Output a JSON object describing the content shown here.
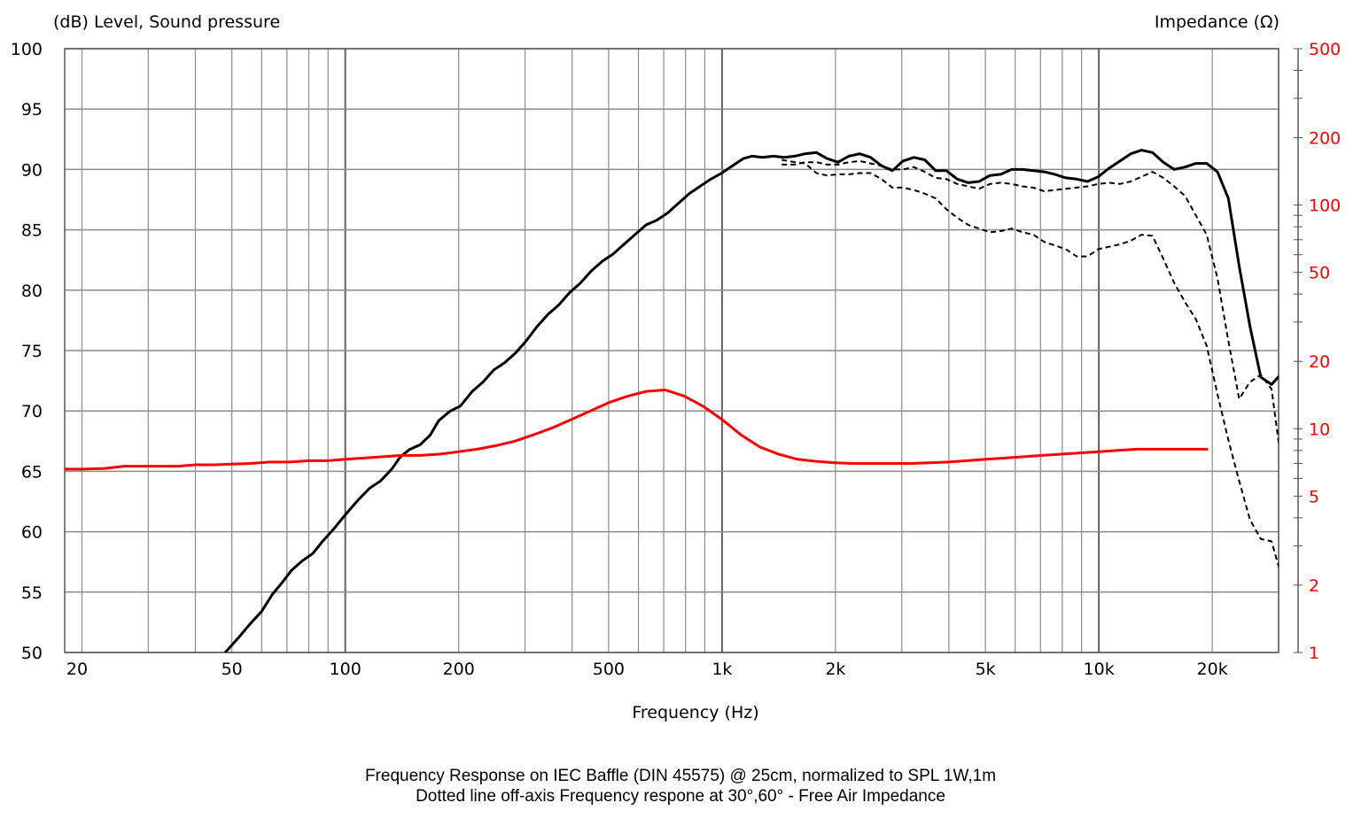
{
  "chart_data": {
    "type": "line",
    "left_axis_label": "(dB)  Level, Sound pressure",
    "right_axis_label": "Impedance  (Ω)",
    "xlabel": "Frequency  (Hz)",
    "x_scale": "log",
    "xlim": [
      18,
      30000
    ],
    "x_ticks": [
      {
        "value": 20,
        "label": "20"
      },
      {
        "value": 50,
        "label": "50"
      },
      {
        "value": 100,
        "label": "100"
      },
      {
        "value": 200,
        "label": "200"
      },
      {
        "value": 500,
        "label": "500"
      },
      {
        "value": 1000,
        "label": "1k"
      },
      {
        "value": 2000,
        "label": "2k"
      },
      {
        "value": 5000,
        "label": "5k"
      },
      {
        "value": 10000,
        "label": "10k"
      },
      {
        "value": 20000,
        "label": "20k"
      }
    ],
    "ylim_left": [
      50,
      100
    ],
    "y_ticks_left": [
      "50",
      "55",
      "60",
      "65",
      "70",
      "75",
      "80",
      "85",
      "90",
      "95",
      "100"
    ],
    "y_scale_right": "log",
    "ylim_right": [
      1,
      500
    ],
    "y_ticks_right": [
      {
        "value": 1,
        "label": "1"
      },
      {
        "value": 2,
        "label": "2"
      },
      {
        "value": 5,
        "label": "5"
      },
      {
        "value": 10,
        "label": "10"
      },
      {
        "value": 20,
        "label": "20"
      },
      {
        "value": 50,
        "label": "50"
      },
      {
        "value": 100,
        "label": "100"
      },
      {
        "value": 200,
        "label": "200"
      },
      {
        "value": 500,
        "label": "500"
      }
    ],
    "grid": true,
    "colors": {
      "spl": "#000000",
      "impedance": "#ff0000",
      "grid": "#8c8c8c",
      "right_axis": "#ff0000"
    },
    "series": [
      {
        "axis": "left",
        "style": "solid",
        "color": "#000000",
        "points": [
          [
            48,
            50
          ],
          [
            52,
            51.2
          ],
          [
            56,
            52.4
          ],
          [
            60,
            53.4
          ],
          [
            64,
            54.8
          ],
          [
            68,
            55.8
          ],
          [
            72,
            56.8
          ],
          [
            77,
            57.6
          ],
          [
            82,
            58.2
          ],
          [
            87,
            59.2
          ],
          [
            93,
            60.2
          ],
          [
            100,
            61.4
          ],
          [
            108,
            62.6
          ],
          [
            116,
            63.6
          ],
          [
            124,
            64.2
          ],
          [
            133,
            65.2
          ],
          [
            140,
            66.2
          ],
          [
            148,
            66.8
          ],
          [
            158,
            67.2
          ],
          [
            168,
            68
          ],
          [
            177,
            69.2
          ],
          [
            190,
            70
          ],
          [
            202,
            70.4
          ],
          [
            217,
            71.6
          ],
          [
            232,
            72.4
          ],
          [
            248,
            73.4
          ],
          [
            265,
            74
          ],
          [
            283,
            74.8
          ],
          [
            302,
            75.8
          ],
          [
            323,
            77
          ],
          [
            345,
            78
          ],
          [
            369,
            78.8
          ],
          [
            394,
            79.8
          ],
          [
            421,
            80.6
          ],
          [
            450,
            81.6
          ],
          [
            481,
            82.4
          ],
          [
            514,
            83
          ],
          [
            549,
            83.8
          ],
          [
            587,
            84.6
          ],
          [
            628,
            85.4
          ],
          [
            671,
            85.8
          ],
          [
            717,
            86.4
          ],
          [
            766,
            87.2
          ],
          [
            818,
            88
          ],
          [
            874,
            88.6
          ],
          [
            934,
            89.2
          ],
          [
            998,
            89.7
          ],
          [
            1066,
            90.3
          ],
          [
            1139,
            90.9
          ],
          [
            1200,
            91.1
          ],
          [
            1280,
            91
          ],
          [
            1370,
            91.1
          ],
          [
            1460,
            91
          ],
          [
            1560,
            91.1
          ],
          [
            1660,
            91.3
          ],
          [
            1780,
            91.4
          ],
          [
            1900,
            90.9
          ],
          [
            2030,
            90.6
          ],
          [
            2170,
            91.1
          ],
          [
            2320,
            91.3
          ],
          [
            2480,
            91
          ],
          [
            2650,
            90.3
          ],
          [
            2830,
            89.9
          ],
          [
            3020,
            90.7
          ],
          [
            3230,
            91
          ],
          [
            3450,
            90.8
          ],
          [
            3690,
            89.9
          ],
          [
            3940,
            89.9
          ],
          [
            4210,
            89.2
          ],
          [
            4500,
            88.9
          ],
          [
            4810,
            89
          ],
          [
            5140,
            89.5
          ],
          [
            5490,
            89.6
          ],
          [
            5870,
            90
          ],
          [
            6270,
            90
          ],
          [
            6700,
            89.9
          ],
          [
            7160,
            89.8
          ],
          [
            7650,
            89.6
          ],
          [
            8170,
            89.3
          ],
          [
            8730,
            89.2
          ],
          [
            9330,
            89
          ],
          [
            9970,
            89.4
          ],
          [
            10650,
            90.1
          ],
          [
            11380,
            90.7
          ],
          [
            12160,
            91.3
          ],
          [
            12990,
            91.6
          ],
          [
            13880,
            91.4
          ],
          [
            14830,
            90.6
          ],
          [
            15850,
            90
          ],
          [
            16940,
            90.2
          ],
          [
            18090,
            90.5
          ],
          [
            19330,
            90.5
          ],
          [
            20650,
            89.8
          ],
          [
            22070,
            87.6
          ],
          [
            23580,
            82
          ],
          [
            25190,
            77
          ],
          [
            26910,
            72.8
          ],
          [
            28750,
            72.2
          ],
          [
            30720,
            73.2
          ]
        ]
      },
      {
        "axis": "left",
        "style": "dashed",
        "color": "#000000",
        "points": [
          [
            1440,
            90.4
          ],
          [
            1560,
            90.4
          ],
          [
            1660,
            90.6
          ],
          [
            1780,
            90.6
          ],
          [
            1900,
            90.4
          ],
          [
            2030,
            90.4
          ],
          [
            2170,
            90.6
          ],
          [
            2320,
            90.7
          ],
          [
            2480,
            90.5
          ],
          [
            2650,
            90.3
          ],
          [
            2830,
            90
          ],
          [
            3020,
            90
          ],
          [
            3230,
            90.2
          ],
          [
            3450,
            89.8
          ],
          [
            3690,
            89.3
          ],
          [
            3940,
            89.2
          ],
          [
            4210,
            88.8
          ],
          [
            4500,
            88.6
          ],
          [
            4810,
            88.4
          ],
          [
            5140,
            88.8
          ],
          [
            5490,
            88.9
          ],
          [
            5870,
            88.8
          ],
          [
            6270,
            88.6
          ],
          [
            6700,
            88.5
          ],
          [
            7160,
            88.2
          ],
          [
            7650,
            88.3
          ],
          [
            8170,
            88.4
          ],
          [
            8730,
            88.5
          ],
          [
            9330,
            88.6
          ],
          [
            9970,
            88.8
          ],
          [
            10650,
            88.9
          ],
          [
            11380,
            88.8
          ],
          [
            12160,
            89
          ],
          [
            12990,
            89.4
          ],
          [
            13880,
            89.8
          ],
          [
            14830,
            89.3
          ],
          [
            15850,
            88.6
          ],
          [
            16940,
            87.8
          ],
          [
            18090,
            86.2
          ],
          [
            19330,
            84.6
          ],
          [
            20650,
            81
          ],
          [
            22070,
            75.8
          ],
          [
            23580,
            71
          ],
          [
            25190,
            72.4
          ],
          [
            26910,
            73
          ],
          [
            28750,
            71.8
          ],
          [
            30720,
            65
          ]
        ]
      },
      {
        "axis": "left",
        "style": "dashed",
        "color": "#000000",
        "points": [
          [
            1440,
            90.8
          ],
          [
            1560,
            90.6
          ],
          [
            1660,
            90.5
          ],
          [
            1780,
            89.7
          ],
          [
            1900,
            89.5
          ],
          [
            2030,
            89.6
          ],
          [
            2170,
            89.6
          ],
          [
            2320,
            89.7
          ],
          [
            2480,
            89.7
          ],
          [
            2650,
            89.2
          ],
          [
            2830,
            88.5
          ],
          [
            3020,
            88.5
          ],
          [
            3230,
            88.3
          ],
          [
            3450,
            88
          ],
          [
            3690,
            87.6
          ],
          [
            3940,
            86.7
          ],
          [
            4210,
            86
          ],
          [
            4500,
            85.4
          ],
          [
            4810,
            85.1
          ],
          [
            5140,
            84.8
          ],
          [
            5490,
            84.9
          ],
          [
            5870,
            85.1
          ],
          [
            6270,
            84.8
          ],
          [
            6700,
            84.6
          ],
          [
            7160,
            84
          ],
          [
            7650,
            83.7
          ],
          [
            8170,
            83.4
          ],
          [
            8730,
            82.8
          ],
          [
            9330,
            82.8
          ],
          [
            9970,
            83.4
          ],
          [
            10650,
            83.6
          ],
          [
            11380,
            83.8
          ],
          [
            12160,
            84.1
          ],
          [
            12990,
            84.6
          ],
          [
            13880,
            84.5
          ],
          [
            14830,
            82.6
          ],
          [
            15850,
            80.6
          ],
          [
            16940,
            79
          ],
          [
            18090,
            77.6
          ],
          [
            19330,
            75.4
          ],
          [
            20650,
            71.4
          ],
          [
            22070,
            67.6
          ],
          [
            23580,
            64.2
          ],
          [
            25190,
            61
          ],
          [
            26910,
            59.4
          ],
          [
            28750,
            59.2
          ],
          [
            30720,
            56
          ]
        ]
      },
      {
        "axis": "right",
        "style": "solid",
        "color": "#ff0000",
        "points": [
          [
            18,
            6.6
          ],
          [
            20,
            6.6
          ],
          [
            23,
            6.65
          ],
          [
            26,
            6.8
          ],
          [
            30,
            6.8
          ],
          [
            36,
            6.8
          ],
          [
            40,
            6.9
          ],
          [
            45,
            6.9
          ],
          [
            50,
            6.95
          ],
          [
            56,
            7
          ],
          [
            63,
            7.1
          ],
          [
            71,
            7.1
          ],
          [
            80,
            7.2
          ],
          [
            90,
            7.2
          ],
          [
            100,
            7.3
          ],
          [
            112,
            7.4
          ],
          [
            126,
            7.5
          ],
          [
            141,
            7.6
          ],
          [
            158,
            7.6
          ],
          [
            178,
            7.7
          ],
          [
            200,
            7.9
          ],
          [
            224,
            8.1
          ],
          [
            251,
            8.4
          ],
          [
            282,
            8.8
          ],
          [
            316,
            9.4
          ],
          [
            355,
            10.1
          ],
          [
            398,
            11
          ],
          [
            447,
            12
          ],
          [
            501,
            13.1
          ],
          [
            562,
            14
          ],
          [
            631,
            14.7
          ],
          [
            708,
            14.9
          ],
          [
            794,
            14
          ],
          [
            891,
            12.6
          ],
          [
            1000,
            11
          ],
          [
            1122,
            9.4
          ],
          [
            1259,
            8.3
          ],
          [
            1413,
            7.7
          ],
          [
            1585,
            7.3
          ],
          [
            1778,
            7.15
          ],
          [
            1995,
            7.05
          ],
          [
            2239,
            7
          ],
          [
            2512,
            7
          ],
          [
            2818,
            7
          ],
          [
            3162,
            7
          ],
          [
            3548,
            7.05
          ],
          [
            3981,
            7.1
          ],
          [
            4467,
            7.2
          ],
          [
            5012,
            7.3
          ],
          [
            5623,
            7.4
          ],
          [
            6310,
            7.5
          ],
          [
            7079,
            7.6
          ],
          [
            7943,
            7.7
          ],
          [
            8913,
            7.8
          ],
          [
            10000,
            7.9
          ],
          [
            11220,
            8
          ],
          [
            12589,
            8.1
          ],
          [
            14125,
            8.1
          ],
          [
            15849,
            8.1
          ],
          [
            17783,
            8.1
          ],
          [
            19500,
            8.1
          ]
        ]
      }
    ]
  },
  "caption": {
    "line1": "Frequency Response on   IEC Baffle (DIN 45575) @ 25cm, normalized to SPL 1W,1m",
    "line2": "Dotted line off-axis Frequency respone at 30°,60°  -    Free Air Impedance"
  }
}
